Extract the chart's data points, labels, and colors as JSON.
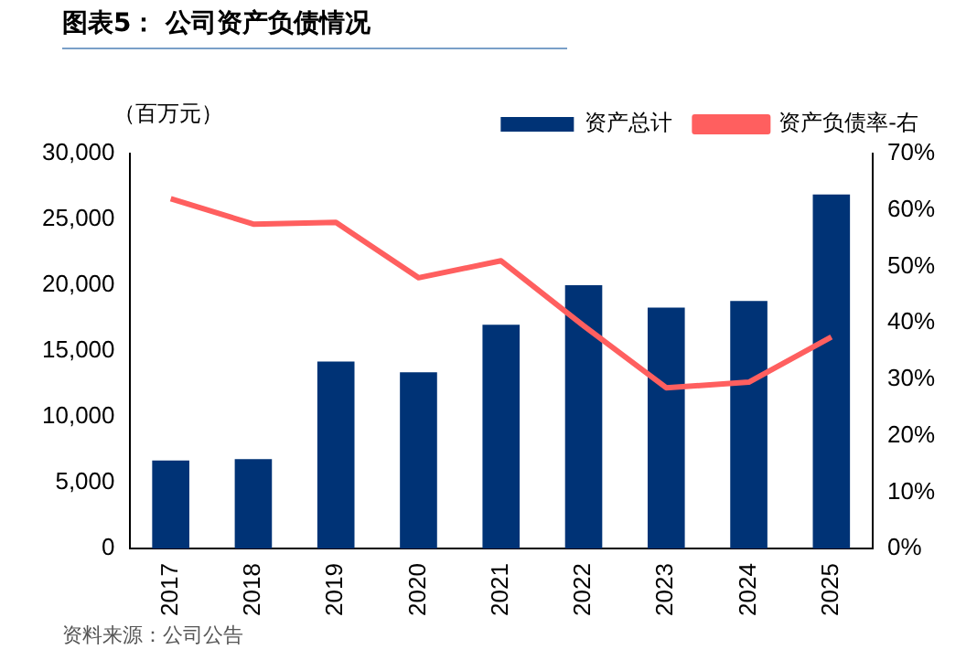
{
  "chart_data": {
    "type": "bar",
    "title": "图表5：  公司资产负债情况",
    "ylabel": "（百万元）",
    "categories": [
      "2017",
      "2018",
      "2019",
      "2020",
      "2021",
      "2022",
      "2023",
      "2024",
      "2025"
    ],
    "series": [
      {
        "name": "资产总计",
        "color": "#003376",
        "values": [
          6700,
          6800,
          14200,
          13400,
          17000,
          20000,
          18300,
          18800,
          26900
        ]
      },
      {
        "name": "资产负债率-右",
        "type": "line",
        "axis": "y2",
        "color": "#ff5f5f",
        "values": [
          62,
          57.5,
          57.8,
          48,
          51,
          39.5,
          28.5,
          29.5,
          37.5
        ]
      }
    ],
    "ylim": [
      0,
      30000
    ],
    "yticks": [
      {
        "value": 0,
        "label": "0"
      },
      {
        "value": 5000,
        "label": "5,000"
      },
      {
        "value": 10000,
        "label": "10,000"
      },
      {
        "value": 15000,
        "label": "15,000"
      },
      {
        "value": 20000,
        "label": "20,000"
      },
      {
        "value": 25000,
        "label": "25,000"
      },
      {
        "value": 30000,
        "label": "30,000"
      }
    ],
    "y2lim": [
      0,
      70
    ],
    "y2ticks": [
      {
        "value": 0,
        "label": "0%"
      },
      {
        "value": 10,
        "label": "10%"
      },
      {
        "value": 20,
        "label": "20%"
      },
      {
        "value": 30,
        "label": "30%"
      },
      {
        "value": 40,
        "label": "40%"
      },
      {
        "value": 50,
        "label": "50%"
      },
      {
        "value": 60,
        "label": "60%"
      },
      {
        "value": 70,
        "label": "70%"
      }
    ],
    "grid": false,
    "legend": "top",
    "marker": "none",
    "annotations": [
      "资料来源：公司公告"
    ]
  }
}
